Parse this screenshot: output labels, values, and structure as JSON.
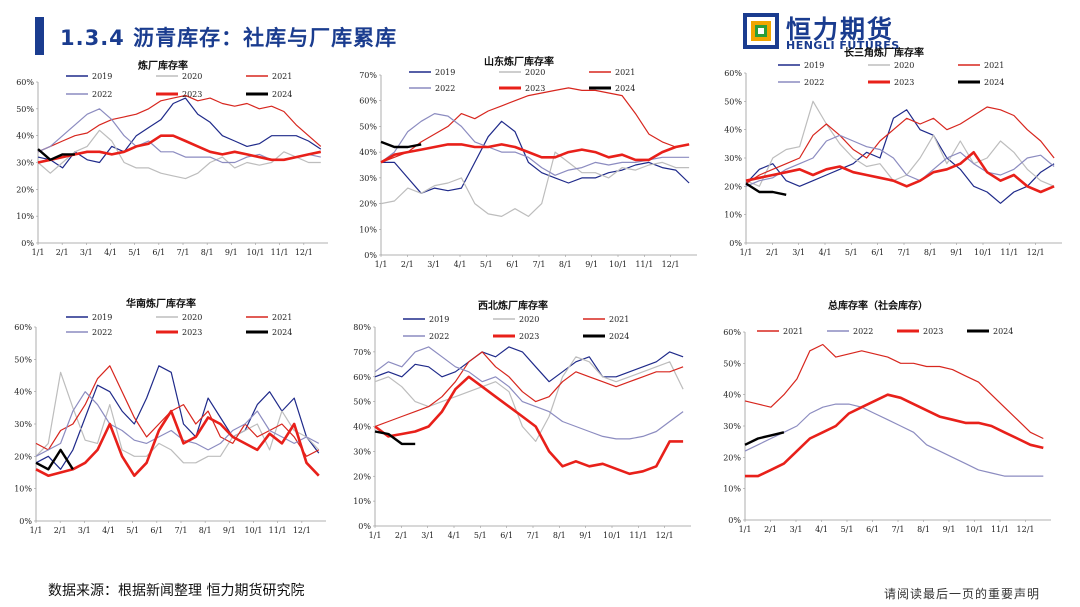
{
  "header": {
    "title": "1.3.4 沥青库存：社库与厂库累库",
    "logo_cn": "恒力期货",
    "logo_en": "HENGLI FUTURES",
    "accent_color": "#1a3c8f"
  },
  "footer": {
    "source": "数据来源：根据新闻整理 恒力期货研究院",
    "disclaimer": "请阅读最后一页的重要声明"
  },
  "series_colors": {
    "2019": "#1f2a8a",
    "2020": "#bdbdbd",
    "2021": "#d7261e",
    "2022": "#8c8cc0",
    "2023": "#e8201a",
    "2024": "#000000"
  },
  "x_ticks": [
    "1/1",
    "2/1",
    "3/1",
    "4/1",
    "5/1",
    "6/1",
    "7/1",
    "8/1",
    "9/1",
    "10/1",
    "11/1",
    "12/1"
  ],
  "chart_data": [
    {
      "type": "line",
      "title": "炼厂库存率",
      "ylim": [
        0,
        60
      ],
      "yticks": [
        0,
        10,
        20,
        30,
        40,
        50,
        60
      ],
      "series": [
        {
          "name": "2019",
          "values": [
            32,
            31,
            28,
            34,
            31,
            30,
            36,
            34,
            40,
            43,
            46,
            52,
            54,
            48,
            45,
            40,
            38,
            36,
            37,
            40,
            40,
            40,
            38,
            35
          ]
        },
        {
          "name": "2020",
          "values": [
            30,
            26,
            30,
            34,
            36,
            42,
            38,
            30,
            28,
            28,
            26,
            25,
            24,
            26,
            30,
            32,
            28,
            30,
            29,
            30,
            34,
            32,
            30,
            30
          ]
        },
        {
          "name": "2021",
          "values": [
            34,
            36,
            38,
            40,
            41,
            44,
            46,
            47,
            48,
            50,
            53,
            54,
            55,
            53,
            54,
            52,
            51,
            52,
            50,
            51,
            49,
            44,
            40,
            36
          ]
        },
        {
          "name": "2022",
          "values": [
            34,
            36,
            40,
            44,
            48,
            50,
            46,
            40,
            36,
            38,
            34,
            34,
            32,
            32,
            32,
            30,
            30,
            32,
            33,
            31,
            31,
            32,
            33,
            32
          ]
        },
        {
          "name": "2023",
          "values": [
            30,
            31,
            32,
            33,
            34,
            34,
            33,
            34,
            36,
            37,
            40,
            40,
            38,
            36,
            34,
            33,
            34,
            33,
            32,
            31,
            31,
            32,
            33,
            34
          ]
        },
        {
          "name": "2024",
          "values": [
            35,
            31,
            33,
            33
          ]
        }
      ]
    },
    {
      "type": "line",
      "title": "山东炼厂库存率",
      "ylim": [
        0,
        70
      ],
      "yticks": [
        0,
        10,
        20,
        30,
        40,
        50,
        60,
        70
      ],
      "series": [
        {
          "name": "2019",
          "values": [
            36,
            36,
            30,
            24,
            26,
            25,
            26,
            36,
            46,
            52,
            48,
            36,
            32,
            30,
            28,
            30,
            30,
            32,
            33,
            35,
            36,
            34,
            33,
            28
          ]
        },
        {
          "name": "2020",
          "values": [
            20,
            21,
            26,
            24,
            27,
            28,
            30,
            20,
            16,
            15,
            18,
            15,
            20,
            40,
            36,
            32,
            32,
            30,
            34,
            33,
            35,
            36,
            34,
            34
          ]
        },
        {
          "name": "2021",
          "values": [
            36,
            38,
            40,
            44,
            47,
            50,
            55,
            53,
            56,
            58,
            60,
            62,
            63,
            64,
            65,
            64,
            64,
            63,
            62,
            55,
            47,
            44,
            42,
            43
          ]
        },
        {
          "name": "2022",
          "values": [
            36,
            40,
            48,
            52,
            55,
            54,
            50,
            44,
            42,
            40,
            40,
            38,
            34,
            31,
            33,
            34,
            36,
            35,
            36,
            36,
            37,
            38,
            38,
            38
          ]
        },
        {
          "name": "2023",
          "values": [
            36,
            39,
            40,
            41,
            42,
            43,
            43,
            42,
            42,
            43,
            42,
            40,
            38,
            38,
            40,
            41,
            40,
            38,
            39,
            37,
            37,
            40,
            42,
            43
          ]
        },
        {
          "name": "2024",
          "values": [
            44,
            42,
            42,
            43
          ]
        }
      ]
    },
    {
      "type": "line",
      "title": "长三角炼厂库存率",
      "ylim": [
        0,
        60
      ],
      "yticks": [
        0,
        10,
        20,
        30,
        40,
        50,
        60
      ],
      "series": [
        {
          "name": "2019",
          "values": [
            21,
            26,
            28,
            22,
            20,
            22,
            24,
            26,
            28,
            32,
            30,
            44,
            47,
            40,
            38,
            30,
            26,
            20,
            18,
            14,
            18,
            20,
            25,
            28
          ]
        },
        {
          "name": "2020",
          "values": [
            22,
            20,
            30,
            33,
            34,
            50,
            42,
            35,
            30,
            27,
            28,
            22,
            24,
            30,
            38,
            28,
            36,
            28,
            30,
            36,
            32,
            26,
            22,
            20
          ]
        },
        {
          "name": "2021",
          "values": [
            21,
            24,
            26,
            28,
            30,
            38,
            42,
            38,
            33,
            30,
            36,
            40,
            44,
            42,
            44,
            40,
            42,
            45,
            48,
            47,
            45,
            40,
            36,
            30
          ]
        },
        {
          "name": "2022",
          "values": [
            20,
            22,
            23,
            26,
            28,
            30,
            36,
            38,
            36,
            34,
            33,
            30,
            24,
            22,
            26,
            30,
            32,
            28,
            25,
            24,
            26,
            30,
            31,
            27
          ]
        },
        {
          "name": "2023",
          "values": [
            22,
            23,
            24,
            25,
            26,
            24,
            26,
            27,
            25,
            24,
            23,
            22,
            20,
            22,
            25,
            26,
            28,
            32,
            25,
            22,
            24,
            20,
            18,
            20
          ]
        },
        {
          "name": "2024",
          "values": [
            21,
            18,
            18,
            17
          ]
        }
      ]
    },
    {
      "type": "line",
      "title": "华南炼厂库存率",
      "ylim": [
        0,
        60
      ],
      "yticks": [
        0,
        10,
        20,
        30,
        40,
        50,
        60
      ],
      "series": [
        {
          "name": "2019",
          "values": [
            18,
            20,
            16,
            22,
            32,
            42,
            40,
            34,
            30,
            38,
            48,
            46,
            30,
            26,
            38,
            32,
            26,
            28,
            36,
            40,
            34,
            38,
            26,
            21
          ]
        },
        {
          "name": "2020",
          "values": [
            20,
            24,
            46,
            35,
            25,
            24,
            36,
            22,
            20,
            20,
            24,
            22,
            18,
            18,
            20,
            20,
            26,
            28,
            30,
            22,
            34,
            28,
            26,
            22
          ]
        },
        {
          "name": "2021",
          "values": [
            24,
            22,
            28,
            30,
            36,
            44,
            48,
            40,
            32,
            26,
            30,
            34,
            36,
            30,
            34,
            26,
            24,
            30,
            26,
            28,
            30,
            26,
            20,
            22
          ]
        },
        {
          "name": "2022",
          "values": [
            20,
            22,
            24,
            34,
            40,
            36,
            30,
            28,
            25,
            24,
            26,
            28,
            25,
            24,
            22,
            24,
            28,
            30,
            34,
            28,
            26,
            24,
            26,
            24
          ]
        },
        {
          "name": "2023",
          "values": [
            16,
            14,
            15,
            16,
            18,
            22,
            30,
            20,
            14,
            18,
            28,
            34,
            24,
            26,
            32,
            30,
            26,
            24,
            22,
            27,
            24,
            30,
            18,
            14
          ]
        },
        {
          "name": "2024",
          "values": [
            18,
            16,
            22,
            16
          ]
        }
      ]
    },
    {
      "type": "line",
      "title": "西北炼厂库存率",
      "ylim": [
        0,
        80
      ],
      "yticks": [
        0,
        10,
        20,
        30,
        40,
        50,
        60,
        70,
        80
      ],
      "series": [
        {
          "name": "2019",
          "values": [
            60,
            62,
            60,
            65,
            64,
            60,
            62,
            66,
            70,
            68,
            72,
            70,
            64,
            58,
            62,
            66,
            68,
            60,
            60,
            62,
            64,
            66,
            70,
            68
          ]
        },
        {
          "name": "2020",
          "values": [
            58,
            60,
            56,
            50,
            48,
            50,
            52,
            54,
            56,
            58,
            54,
            40,
            34,
            44,
            60,
            68,
            66,
            60,
            58,
            60,
            62,
            64,
            66,
            55
          ]
        },
        {
          "name": "2021",
          "values": [
            40,
            42,
            44,
            46,
            48,
            52,
            58,
            66,
            70,
            64,
            60,
            54,
            50,
            52,
            58,
            62,
            60,
            58,
            56,
            58,
            60,
            62,
            62,
            64
          ]
        },
        {
          "name": "2022",
          "values": [
            62,
            66,
            64,
            70,
            72,
            68,
            64,
            62,
            58,
            60,
            56,
            50,
            48,
            46,
            42,
            40,
            38,
            36,
            35,
            35,
            36,
            38,
            42,
            46
          ]
        },
        {
          "name": "2023",
          "values": [
            40,
            36,
            37,
            38,
            40,
            46,
            55,
            60,
            56,
            52,
            48,
            44,
            40,
            30,
            24,
            26,
            24,
            25,
            23,
            21,
            22,
            24,
            34,
            34
          ]
        },
        {
          "name": "2024",
          "values": [
            38,
            37,
            33,
            33
          ]
        }
      ]
    },
    {
      "type": "line",
      "title": "总库存率（社会库存）",
      "ylim": [
        0,
        60
      ],
      "yticks": [
        0,
        10,
        20,
        30,
        40,
        50,
        60
      ],
      "series": [
        {
          "name": "2021",
          "values": [
            38,
            37,
            36,
            40,
            45,
            54,
            56,
            52,
            53,
            54,
            53,
            52,
            50,
            50,
            49,
            49,
            48,
            46,
            44,
            40,
            36,
            32,
            28,
            26
          ]
        },
        {
          "name": "2022",
          "values": [
            22,
            24,
            26,
            28,
            30,
            34,
            36,
            37,
            37,
            36,
            34,
            32,
            30,
            28,
            24,
            22,
            20,
            18,
            16,
            15,
            14,
            14,
            14,
            14
          ]
        },
        {
          "name": "2023",
          "values": [
            14,
            14,
            16,
            18,
            22,
            26,
            28,
            30,
            34,
            36,
            38,
            40,
            39,
            37,
            35,
            33,
            32,
            31,
            31,
            30,
            28,
            26,
            24,
            23
          ]
        },
        {
          "name": "2024",
          "values": [
            24,
            26,
            27,
            28
          ]
        }
      ]
    }
  ]
}
